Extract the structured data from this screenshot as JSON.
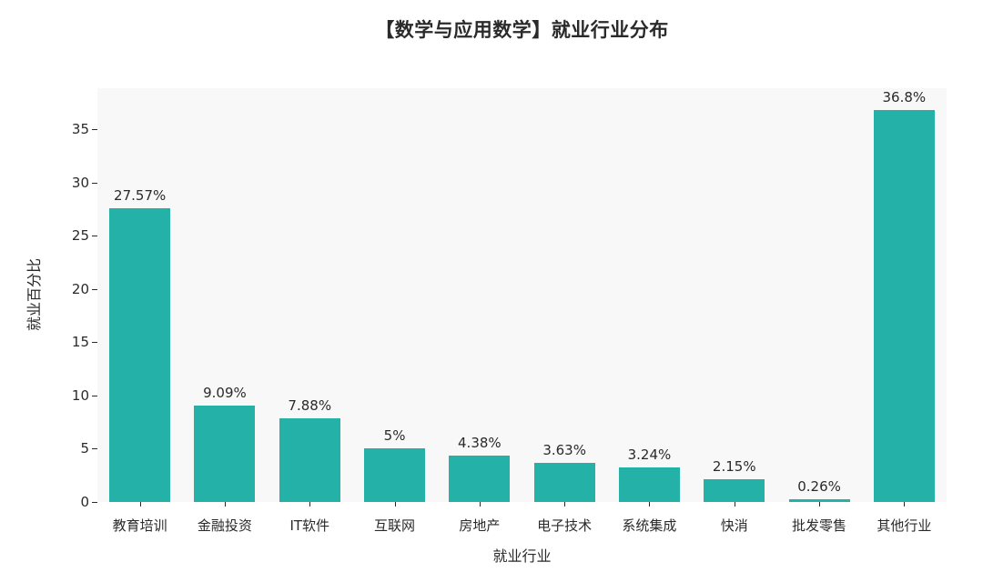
{
  "chart_data": {
    "type": "bar",
    "title": "【数学与应用数学】就业行业分布",
    "xlabel": "就业行业",
    "ylabel": "就业百分比",
    "categories": [
      "教育培训",
      "金融投资",
      "IT软件",
      "互联网",
      "房地产",
      "电子技术",
      "系统集成",
      "快消",
      "批发零售",
      "其他行业"
    ],
    "values": [
      27.57,
      9.09,
      7.88,
      5,
      4.38,
      3.63,
      3.24,
      2.15,
      0.26,
      36.8
    ],
    "value_labels": [
      "27.57%",
      "9.09%",
      "7.88%",
      "5%",
      "4.38%",
      "3.63%",
      "3.24%",
      "2.15%",
      "0.26%",
      "36.8%"
    ],
    "yticks": [
      0,
      5,
      10,
      15,
      20,
      25,
      30,
      35
    ],
    "ylim": [
      0,
      38.85
    ],
    "grid": false,
    "legend": "none",
    "bar_color": "#23b1a8",
    "plot_bg": "#f8f8f9",
    "text_color": "#2a2a2a"
  }
}
